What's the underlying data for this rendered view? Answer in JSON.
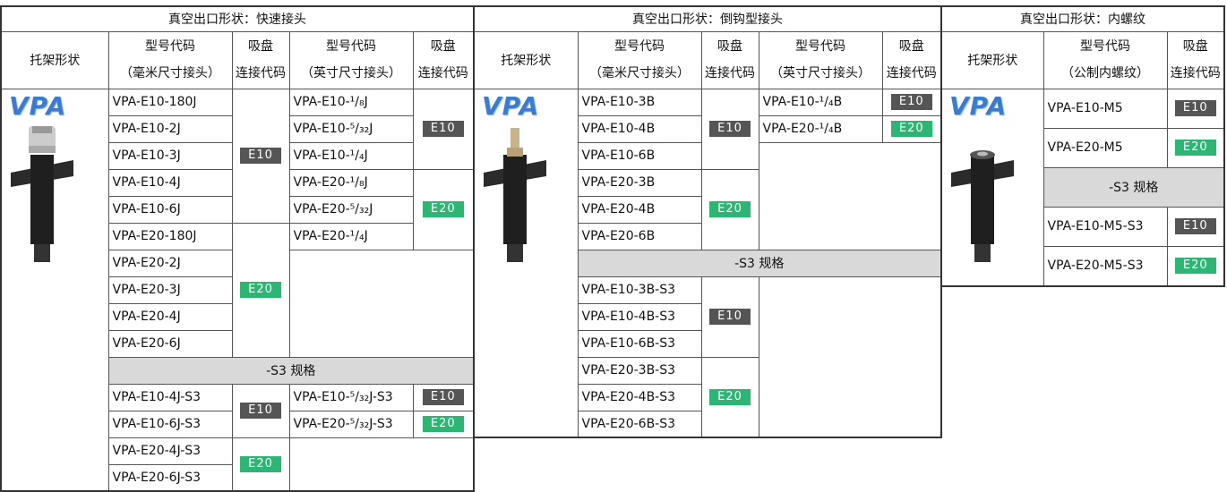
{
  "tables": [
    {
      "title": "真空出口形状：快速接头",
      "headers": {
        "bracket": "托架形状",
        "model_mm": [
          "型号代码",
          "（毫米尺寸接头）"
        ],
        "code_mm": [
          "吸盘",
          "连接代码"
        ],
        "model_inch": [
          "型号代码",
          "（英寸尺寸接头）"
        ],
        "code_inch": [
          "吸盘",
          "连接代码"
        ]
      },
      "logo": "VPA",
      "mm_models": [
        "VPA-E10-180J",
        "VPA-E10-2J",
        "VPA-E10-3J",
        "VPA-E10-4J",
        "VPA-E10-6J",
        "VPA-E20-180J",
        "VPA-E20-2J",
        "VPA-E20-3J",
        "VPA-E20-4J",
        "VPA-E20-6J"
      ],
      "mm_codes": [
        "E10",
        "E20"
      ],
      "inch_models": [
        "VPA-E10-¹/₈J",
        "VPA-E10-⁵/₃₂J",
        "VPA-E10-¹/₄J",
        "VPA-E20-¹/₈J",
        "VPA-E20-⁵/₃₂J",
        "VPA-E20-¹/₄J"
      ],
      "inch_codes": [
        "E10",
        "E20"
      ],
      "s3_title": "-S3 规格",
      "s3_mm_models": [
        "VPA-E10-4J-S3",
        "VPA-E10-6J-S3",
        "VPA-E20-4J-S3",
        "VPA-E20-6J-S3"
      ],
      "s3_mm_codes": [
        "E10",
        "E20"
      ],
      "s3_inch_models": [
        "VPA-E10-⁵/₃₂J-S3",
        "VPA-E20-⁵/₃₂J-S3"
      ],
      "s3_inch_codes": [
        "E10",
        "E20"
      ]
    },
    {
      "title": "真空出口形状：倒钩型接头",
      "headers": {
        "bracket": "托架形状",
        "model_mm": [
          "型号代码",
          "（毫米尺寸接头）"
        ],
        "code_mm": [
          "吸盘",
          "连接代码"
        ],
        "model_inch": [
          "型号代码",
          "（英寸尺寸接头）"
        ],
        "code_inch": [
          "吸盘",
          "连接代码"
        ]
      },
      "logo": "VPA",
      "mm_models": [
        "VPA-E10-3B",
        "VPA-E10-4B",
        "VPA-E10-6B",
        "VPA-E20-3B",
        "VPA-E20-4B",
        "VPA-E20-6B"
      ],
      "mm_codes": [
        "E10",
        "E20"
      ],
      "inch_models": [
        "VPA-E10-¹/₄B",
        "VPA-E20-¹/₄B"
      ],
      "inch_codes": [
        "E10",
        "E20"
      ],
      "s3_title": "-S3 规格",
      "s3_mm_models": [
        "VPA-E10-3B-S3",
        "VPA-E10-4B-S3",
        "VPA-E10-6B-S3",
        "VPA-E20-3B-S3",
        "VPA-E20-4B-S3",
        "VPA-E20-6B-S3"
      ],
      "s3_mm_codes": [
        "E10",
        "E20"
      ]
    },
    {
      "title": "真空出口形状：内螺纹",
      "headers": {
        "bracket": "托架形状",
        "model": [
          "型号代码",
          "（公制内螺纹）"
        ],
        "code": [
          "吸盘",
          "连接代码"
        ]
      },
      "logo": "VPA",
      "models": [
        "VPA-E10-M5",
        "VPA-E20-M5"
      ],
      "codes": [
        "E10",
        "E20"
      ],
      "s3_title": "-S3 规格",
      "s3_models": [
        "VPA-E10-M5-S3",
        "VPA-E20-M5-S3"
      ],
      "s3_codes": [
        "E10",
        "E20"
      ]
    }
  ]
}
